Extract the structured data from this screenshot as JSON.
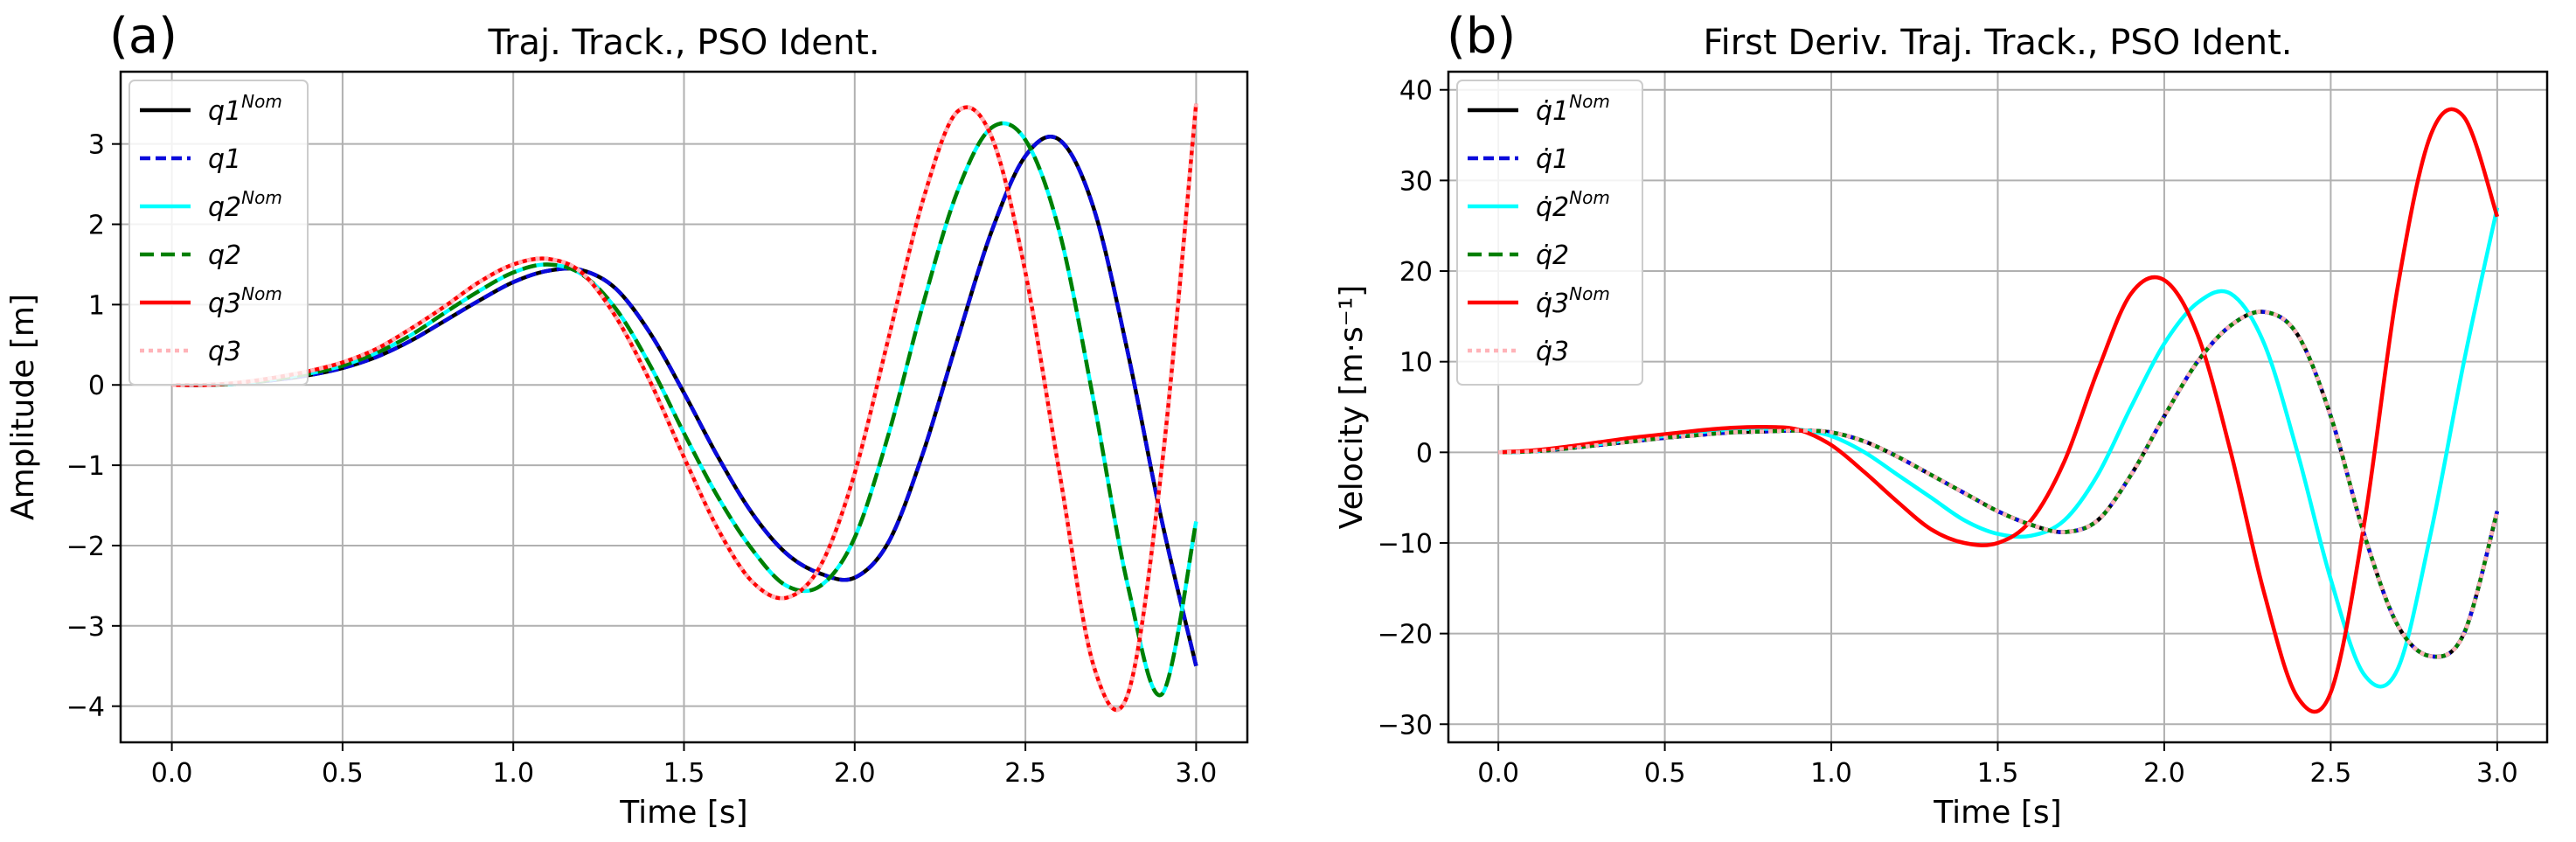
{
  "chart_data": [
    {
      "type": "line",
      "panel_label": "(a)",
      "title": "Traj. Track., PSO Ident.",
      "xlabel": "Time [s]",
      "ylabel": "Amplitude [m]",
      "xlim": [
        -0.15,
        3.15
      ],
      "ylim": [
        -4.45,
        3.9
      ],
      "xticks": [
        0.0,
        0.5,
        1.0,
        1.5,
        2.0,
        2.5,
        3.0
      ],
      "xtick_labels": [
        "0.0",
        "0.5",
        "1.0",
        "1.5",
        "2.0",
        "2.5",
        "3.0"
      ],
      "yticks": [
        -4,
        -3,
        -2,
        -1,
        0,
        1,
        2,
        3
      ],
      "ytick_labels": [
        "−4",
        "−3",
        "−2",
        "−1",
        "0",
        "1",
        "2",
        "3"
      ],
      "grid": true,
      "legend_position": "top-left",
      "x": [
        0.0,
        0.1,
        0.2,
        0.3,
        0.4,
        0.5,
        0.6,
        0.7,
        0.8,
        0.9,
        1.0,
        1.1,
        1.2,
        1.3,
        1.4,
        1.5,
        1.6,
        1.7,
        1.8,
        1.9,
        2.0,
        2.1,
        2.2,
        2.3,
        2.4,
        2.5,
        2.6,
        2.7,
        2.8,
        2.9,
        3.0
      ],
      "series": [
        {
          "name": "q1",
          "sup": "Nom",
          "color": "#000000",
          "dash": "",
          "values": [
            0.0,
            0.0,
            0.02,
            0.06,
            0.12,
            0.21,
            0.35,
            0.55,
            0.8,
            1.05,
            1.28,
            1.42,
            1.43,
            1.2,
            0.65,
            -0.1,
            -0.9,
            -1.6,
            -2.1,
            -2.35,
            -2.4,
            -1.95,
            -0.85,
            0.55,
            1.9,
            2.85,
            3.05,
            2.2,
            0.4,
            -1.7,
            -3.5
          ]
        },
        {
          "name": "q1",
          "sup": "",
          "color": "#0a0adc",
          "dash": "12,6",
          "values": [
            0.0,
            0.0,
            0.02,
            0.06,
            0.12,
            0.21,
            0.35,
            0.55,
            0.8,
            1.05,
            1.28,
            1.42,
            1.43,
            1.2,
            0.65,
            -0.1,
            -0.9,
            -1.6,
            -2.1,
            -2.35,
            -2.4,
            -1.95,
            -0.85,
            0.55,
            1.9,
            2.85,
            3.05,
            2.2,
            0.4,
            -1.7,
            -3.5
          ]
        },
        {
          "name": "q2",
          "sup": "Nom",
          "color": "#00ffff",
          "dash": "",
          "values": [
            0.0,
            0.0,
            0.02,
            0.07,
            0.14,
            0.24,
            0.4,
            0.62,
            0.9,
            1.17,
            1.4,
            1.5,
            1.38,
            0.95,
            0.25,
            -0.6,
            -1.4,
            -2.05,
            -2.5,
            -2.5,
            -1.9,
            -0.6,
            1.0,
            2.4,
            3.2,
            3.05,
            1.9,
            -0.2,
            -2.5,
            -3.85,
            -1.7
          ]
        },
        {
          "name": "q2",
          "sup": "",
          "color": "#007f00",
          "dash": "16,8",
          "values": [
            0.0,
            0.0,
            0.02,
            0.07,
            0.14,
            0.24,
            0.4,
            0.62,
            0.9,
            1.17,
            1.4,
            1.5,
            1.38,
            0.95,
            0.25,
            -0.6,
            -1.4,
            -2.05,
            -2.5,
            -2.5,
            -1.9,
            -0.6,
            1.0,
            2.4,
            3.2,
            3.05,
            1.9,
            -0.2,
            -2.5,
            -3.85,
            -1.7
          ]
        },
        {
          "name": "q3",
          "sup": "Nom",
          "color": "#ff0000",
          "dash": "",
          "values": [
            0.0,
            0.0,
            0.03,
            0.09,
            0.17,
            0.28,
            0.45,
            0.7,
            0.98,
            1.28,
            1.5,
            1.57,
            1.4,
            0.85,
            0.05,
            -0.9,
            -1.8,
            -2.45,
            -2.65,
            -2.25,
            -1.1,
            0.6,
            2.3,
            3.4,
            3.1,
            1.4,
            -1.1,
            -3.5,
            -3.85,
            -1.0,
            3.5
          ]
        },
        {
          "name": "q3",
          "sup": "",
          "color": "#ffb3b8",
          "dash": "5,5",
          "values": [
            0.0,
            0.0,
            0.03,
            0.09,
            0.17,
            0.28,
            0.45,
            0.7,
            0.98,
            1.28,
            1.5,
            1.57,
            1.4,
            0.85,
            0.05,
            -0.9,
            -1.8,
            -2.45,
            -2.65,
            -2.25,
            -1.1,
            0.6,
            2.3,
            3.4,
            3.1,
            1.4,
            -1.1,
            -3.5,
            -3.85,
            -1.0,
            3.5
          ]
        }
      ]
    },
    {
      "type": "line",
      "panel_label": "(b)",
      "title": "First Deriv. Traj. Track., PSO Ident.",
      "xlabel": "Time [s]",
      "ylabel": "Velocity [m·s⁻¹]",
      "xlim": [
        -0.15,
        3.15
      ],
      "ylim": [
        -32,
        42
      ],
      "xticks": [
        0.0,
        0.5,
        1.0,
        1.5,
        2.0,
        2.5,
        3.0
      ],
      "xtick_labels": [
        "0.0",
        "0.5",
        "1.0",
        "1.5",
        "2.0",
        "2.5",
        "3.0"
      ],
      "yticks": [
        -30,
        -20,
        -10,
        0,
        10,
        20,
        30,
        40
      ],
      "ytick_labels": [
        "−30",
        "−20",
        "−10",
        "0",
        "10",
        "20",
        "30",
        "40"
      ],
      "grid": true,
      "legend_position": "top-left",
      "x": [
        0.0,
        0.1,
        0.2,
        0.3,
        0.4,
        0.5,
        0.6,
        0.7,
        0.8,
        0.9,
        1.0,
        1.1,
        1.2,
        1.3,
        1.4,
        1.5,
        1.6,
        1.7,
        1.8,
        1.9,
        2.0,
        2.1,
        2.2,
        2.3,
        2.4,
        2.5,
        2.6,
        2.7,
        2.8,
        2.9,
        3.0
      ],
      "series": [
        {
          "name": "q̇1",
          "sup": "Nom",
          "color": "#000000",
          "dash": "",
          "values": [
            0.0,
            0.1,
            0.4,
            0.8,
            1.2,
            1.6,
            1.9,
            2.2,
            2.3,
            2.4,
            2.2,
            1.2,
            -0.5,
            -2.5,
            -4.5,
            -6.5,
            -8.0,
            -8.8,
            -7.5,
            -2.5,
            4.0,
            10.0,
            14.0,
            15.5,
            13.0,
            4.0,
            -9.0,
            -19.0,
            -22.5,
            -20.0,
            -6.5
          ]
        },
        {
          "name": "q̇1",
          "sup": "",
          "color": "#0a0adc",
          "dash": "12,6",
          "values": [
            0.0,
            0.1,
            0.4,
            0.8,
            1.2,
            1.6,
            1.9,
            2.2,
            2.3,
            2.4,
            2.2,
            1.2,
            -0.5,
            -2.5,
            -4.5,
            -6.5,
            -8.0,
            -8.8,
            -7.5,
            -2.5,
            4.0,
            10.0,
            14.0,
            15.5,
            13.0,
            4.0,
            -9.0,
            -19.0,
            -22.5,
            -20.0,
            -6.5
          ]
        },
        {
          "name": "q̇2",
          "sup": "Nom",
          "color": "#00ffff",
          "dash": "",
          "values": [
            0.0,
            0.1,
            0.5,
            0.9,
            1.4,
            1.8,
            2.2,
            2.5,
            2.6,
            2.5,
            1.8,
            0.0,
            -2.5,
            -5.0,
            -7.5,
            -9.0,
            -9.2,
            -7.5,
            -2.5,
            5.0,
            12.0,
            16.5,
            17.5,
            12.0,
            0.0,
            -14.0,
            -24.5,
            -24.0,
            -9.0,
            10.0,
            27.0
          ]
        },
        {
          "name": "q̇2",
          "sup": "",
          "color": "#007f00",
          "dash": "16,8",
          "values": [
            0.0,
            0.1,
            0.4,
            0.8,
            1.2,
            1.6,
            1.9,
            2.2,
            2.3,
            2.4,
            2.2,
            1.2,
            -0.5,
            -2.5,
            -4.5,
            -6.5,
            -8.0,
            -8.8,
            -7.5,
            -2.5,
            4.0,
            10.0,
            14.0,
            15.5,
            13.0,
            4.0,
            -9.0,
            -19.0,
            -22.5,
            -20.0,
            -6.5
          ]
        },
        {
          "name": "q̇3",
          "sup": "Nom",
          "color": "#ff0000",
          "dash": "",
          "values": [
            0.0,
            0.2,
            0.6,
            1.1,
            1.6,
            2.0,
            2.4,
            2.7,
            2.8,
            2.5,
            0.8,
            -2.2,
            -5.5,
            -8.5,
            -10.0,
            -10.0,
            -7.5,
            -1.0,
            9.0,
            17.5,
            19.0,
            13.0,
            0.0,
            -15.5,
            -27.0,
            -26.5,
            -8.0,
            18.0,
            35.0,
            37.0,
            26.0
          ]
        },
        {
          "name": "q̇3",
          "sup": "",
          "color": "#ffb3b8",
          "dash": "5,5",
          "values": [
            0.0,
            0.1,
            0.4,
            0.8,
            1.2,
            1.6,
            1.9,
            2.2,
            2.3,
            2.4,
            2.2,
            1.2,
            -0.5,
            -2.5,
            -4.5,
            -6.5,
            -8.0,
            -8.8,
            -7.5,
            -2.5,
            4.0,
            10.0,
            14.0,
            15.5,
            13.0,
            4.0,
            -9.0,
            -19.0,
            -22.5,
            -20.0,
            -6.5
          ]
        }
      ]
    }
  ]
}
